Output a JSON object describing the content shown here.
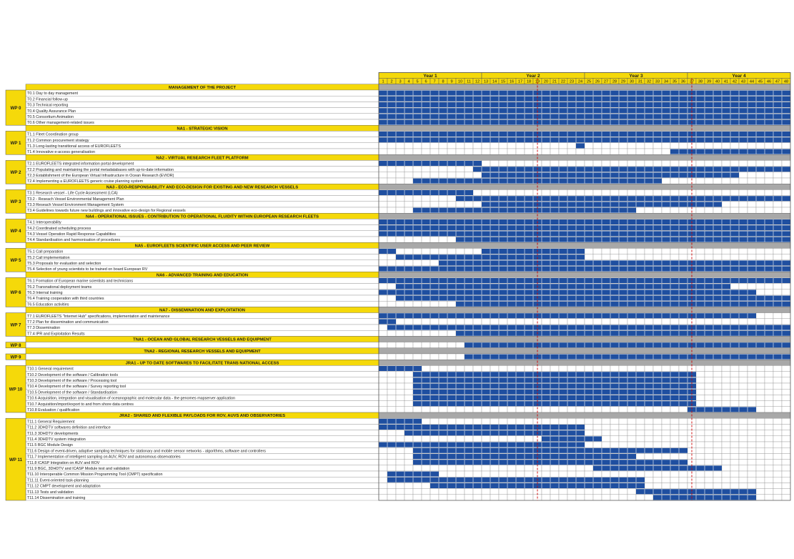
{
  "years": [
    "Year 1",
    "Year 2",
    "Year 3",
    "Year 4"
  ],
  "months": [
    "1",
    "2",
    "3",
    "4",
    "5",
    "6",
    "7",
    "8",
    "9",
    "10",
    "11",
    "12",
    "13",
    "14",
    "15",
    "16",
    "17",
    "18",
    "19",
    "20",
    "21",
    "22",
    "23",
    "24",
    "25",
    "26",
    "27",
    "28",
    "29",
    "30",
    "31",
    "32",
    "33",
    "34",
    "35",
    "36",
    "37",
    "38",
    "39",
    "40",
    "41",
    "42",
    "43",
    "44",
    "45",
    "46",
    "47",
    "48"
  ],
  "colors": {
    "bar": "#1f4fa0",
    "header": "#f5d90a",
    "section": "#a8a8a8",
    "grid": "#8a8a8a",
    "milestone": "#cc0000",
    "text": "#1a1a1a",
    "border": "#555555"
  },
  "milestones": [
    18.5,
    36.5
  ],
  "groups": [
    {
      "title": "MANAGEMENT OF THE PROJECT",
      "wp": "WP 0",
      "tasks": [
        {
          "label": "T0.1 Day to day management",
          "spans": [
            [
              1,
              48
            ]
          ]
        },
        {
          "label": "T0.2 Financial follow-up",
          "spans": [
            [
              1,
              48
            ]
          ]
        },
        {
          "label": "T0.3 Technical reporting",
          "spans": [
            [
              1,
              48
            ]
          ]
        },
        {
          "label": "T0.4 Quality Assurance Plan",
          "spans": [
            [
              1,
              48
            ]
          ]
        },
        {
          "label": "T0.5 Consortium Animation",
          "spans": [
            [
              1,
              48
            ]
          ]
        },
        {
          "label": "T0.6 Other management-related issues",
          "spans": [
            [
              1,
              48
            ]
          ]
        }
      ]
    },
    {
      "title": "NA1 - STRATEGIC VISION",
      "wp": "WP 1",
      "tasks": [
        {
          "label": "T1.1 Fleet Coordination group",
          "spans": [
            [
              1,
              48
            ]
          ]
        },
        {
          "label": "T1.2 Common procurement strategy",
          "spans": [
            [
              1,
              48
            ]
          ]
        },
        {
          "label": "T1.3 Long-lasting transitional access of EUROFLEETS",
          "spans": [
            [
              24,
              24
            ]
          ]
        },
        {
          "label": "T1.4 Innovative e-access generalisation",
          "spans": [
            [
              35,
              48
            ]
          ]
        }
      ]
    },
    {
      "title": "NA2 - VIRTUAL RESEARCH FLEET PLATFORM",
      "wp": "WP 2",
      "tasks": [
        {
          "label": "T2.1 EUROFLEETS integrated information portal development",
          "spans": [
            [
              1,
              12
            ]
          ]
        },
        {
          "label": "T2.2 Populating and maintaining the portal metadatabases with up-to-date information",
          "spans": [
            [
              12,
              48
            ]
          ]
        },
        {
          "label": "T2.3 Establishment of the European Virtual Infrastructure in Ocean Research (EVIOR)",
          "spans": [
            [
              13,
              42
            ]
          ]
        },
        {
          "label": "T2.4 Implementing a EUROFLEETS generic cruise planning system",
          "spans": [
            [
              5,
              33
            ]
          ]
        }
      ]
    },
    {
      "title": "NA3 - ECO-RESPONSABILITY AND ECO-DESIGN FOR EXISTING AND NEW RESEARCH VESSELS",
      "wp": "WP 3",
      "tasks": [
        {
          "label": "T3.1 Research vessel - Life Cycle Assessment (LCA)",
          "spans": [
            [
              1,
              11
            ]
          ]
        },
        {
          "label": "T3.2 - Reseach Vessel Environmental Management Plan",
          "spans": [
            [
              10,
              48
            ]
          ]
        },
        {
          "label": "T3.3 Reseach Vessel Environment Management System",
          "spans": [
            [
              13,
              40
            ]
          ]
        },
        {
          "label": "T3.4 Guidelines towards future new buildings and innovative eco-design for Regional vessels",
          "spans": [
            [
              5,
              30
            ]
          ]
        }
      ]
    },
    {
      "title": "NA4 - OPERATIONAL ISSUES - CONTRIBUTION TO OPERATIONAL FLUIDITY WITHIN EUROPEAN RESEARCH FLEETS",
      "wp": "WP 4",
      "tasks": [
        {
          "label": "T4.1 Interoperability",
          "spans": [
            [
              1,
              48
            ]
          ]
        },
        {
          "label": "T4.2 Coordinated scheduling process",
          "spans": [
            [
              1,
              48
            ]
          ]
        },
        {
          "label": "T4.3 Vessel Operation Rapid Response Capabilities",
          "spans": [
            [
              1,
              48
            ]
          ]
        },
        {
          "label": "T4.4 Standardisation and harmonisation of procedures",
          "spans": [
            [
              10,
              48
            ]
          ]
        }
      ]
    },
    {
      "title": "NA5 - EUROFLEETS SCIENTIFIC USER ACCESS AND PEER REVIEW",
      "wp": "WP 5",
      "tasks": [
        {
          "label": "T5.1 Call preparation",
          "spans": [
            [
              1,
              2
            ],
            [
              13,
              24
            ]
          ]
        },
        {
          "label": "T5.2 Call implementation",
          "spans": [
            [
              3,
              24
            ]
          ]
        },
        {
          "label": "T5.3 Proposals for evaluation and selection",
          "spans": [
            [
              8,
              48
            ]
          ]
        },
        {
          "label": "T5.4 Selection of young scientists to be trained on board European RV",
          "spans": [
            [
              1,
              48
            ]
          ]
        }
      ]
    },
    {
      "title": "NA6 - ADVANCED TRAINING AND EDUCATION",
      "wp": "WP 6",
      "tasks": [
        {
          "label": "T6.1 Formation of European marine scientists and technicians",
          "spans": [
            [
              1,
              48
            ]
          ]
        },
        {
          "label": "T6.2 Transnational deployment teams",
          "spans": [
            [
              3,
              41
            ]
          ]
        },
        {
          "label": "T6.3 Internal training",
          "spans": [
            [
              1,
              44
            ]
          ]
        },
        {
          "label": "T6.4 Training cooperation with third countries",
          "spans": [
            [
              3,
              48
            ]
          ]
        },
        {
          "label": "T6.5 Education activities",
          "spans": [
            [
              10,
              48
            ]
          ]
        }
      ]
    },
    {
      "title": "NA7 - DISSEMINATION AND EXPLOITATION",
      "wp": "WP 7",
      "tasks": [
        {
          "label": "T7.1 EUROFLEETS \"Internet Hub\" specifications, implementation and maintenance",
          "spans": [
            [
              1,
              44
            ]
          ]
        },
        {
          "label": "T7.2 Plan for dissemination and communication",
          "spans": [
            [
              1,
              2
            ]
          ]
        },
        {
          "label": "T7.3 Dissemination",
          "spans": [
            [
              2,
              48
            ]
          ]
        },
        {
          "label": "T7.4 IPR and Exploitation Results",
          "spans": [
            [
              10,
              48
            ]
          ]
        }
      ]
    },
    {
      "title": "TNA1 - OCEAN AND GLOBAL RESEARCH VESSELS AND EQUIPMENT",
      "wp": "WP 8",
      "tasks": [
        {
          "label": "",
          "spans": [
            [
              11,
              48
            ]
          ]
        }
      ]
    },
    {
      "title": "TNA2 - REGIONAL RESEARCH VESSELS AND EQUIPMENT",
      "wp": "WP 9",
      "tasks": [
        {
          "label": "",
          "spans": [
            [
              11,
              48
            ]
          ]
        }
      ]
    },
    {
      "title": "JRA1 - UP TO DATE SOFTWARES TO FACILITATE TRANS NATIONAL ACCESS",
      "wp": "WP 10",
      "tasks": [
        {
          "label": "T10.1 General requirement",
          "spans": [
            [
              1,
              5
            ]
          ]
        },
        {
          "label": "T10.2 Development of the software / Calibration tools",
          "spans": [
            [
              5,
              37
            ]
          ]
        },
        {
          "label": "T10.3 Development of the software / Processing tool",
          "spans": [
            [
              5,
              37
            ]
          ]
        },
        {
          "label": "T10.4 Development of the software / Survey reporting tool",
          "spans": [
            [
              5,
              37
            ]
          ]
        },
        {
          "label": "T10.5 Development of the software / Standardisation",
          "spans": [
            [
              5,
              37
            ]
          ]
        },
        {
          "label": "T10.6 Acquisition, integration and visualisation of oceanographic and molecular data - the genomes mapserver application",
          "spans": [
            [
              5,
              37
            ]
          ]
        },
        {
          "label": "T10.7 Acquisition/import/export to and from shore data centres",
          "spans": [
            [
              5,
              37
            ]
          ]
        },
        {
          "label": "T10.8 Evaluation / qualification",
          "spans": [
            [
              37,
              44
            ]
          ]
        }
      ]
    },
    {
      "title": "JRA2 - SHARED AND FLEXIBLE PAYLOADS FOR ROV, AUVS AND OBSERVATORIES",
      "wp": "WP 11",
      "tasks": [
        {
          "label": "T11.1 General Requirement",
          "spans": [
            [
              1,
              5
            ]
          ]
        },
        {
          "label": "T11.2 3DHDTV softwares definition and interface",
          "spans": [
            [
              1,
              24
            ]
          ]
        },
        {
          "label": "T11.3 3DHDTV developments",
          "spans": [
            [
              4,
              24
            ]
          ]
        },
        {
          "label": "T11.4 3DHDTV system integration",
          "spans": [
            [
              20,
              26
            ]
          ]
        },
        {
          "label": "T11.5 BGC Module Design",
          "spans": [
            [
              1,
              24
            ]
          ]
        },
        {
          "label": "T11.6 Design of event-driven, adaptive sampling techniques for stationary and mobile sensor networks - algorithms, software and controllers",
          "spans": [
            [
              5,
              36
            ]
          ]
        },
        {
          "label": "T11.7 Implementation of intelligent sampling on AUV, ROV and autonomous observatories",
          "spans": [
            [
              5,
              30
            ]
          ]
        },
        {
          "label": "T11.8 ICASP Integration on AUV and ROV",
          "spans": [
            [
              5,
              36
            ]
          ]
        },
        {
          "label": "T11.9 BGC, 3DHDTV and ICASP Module test and validation",
          "spans": [
            [
              26,
              40
            ]
          ]
        },
        {
          "label": "T11.10 Interoperable Common Mission Programming Tool (CMPT) specification",
          "spans": [
            [
              2,
              7
            ]
          ]
        },
        {
          "label": "T11.11 Event-oriented task-planning",
          "spans": [
            [
              2,
              31
            ]
          ]
        },
        {
          "label": "T11.12 CMPT development and adaptation",
          "spans": [
            [
              7,
              31
            ]
          ]
        },
        {
          "label": "T11.13 Tests and validation",
          "spans": [
            [
              31,
              44
            ]
          ]
        },
        {
          "label": "T11.14 Dissemination and training",
          "spans": [
            [
              33,
              44
            ]
          ]
        }
      ]
    }
  ]
}
